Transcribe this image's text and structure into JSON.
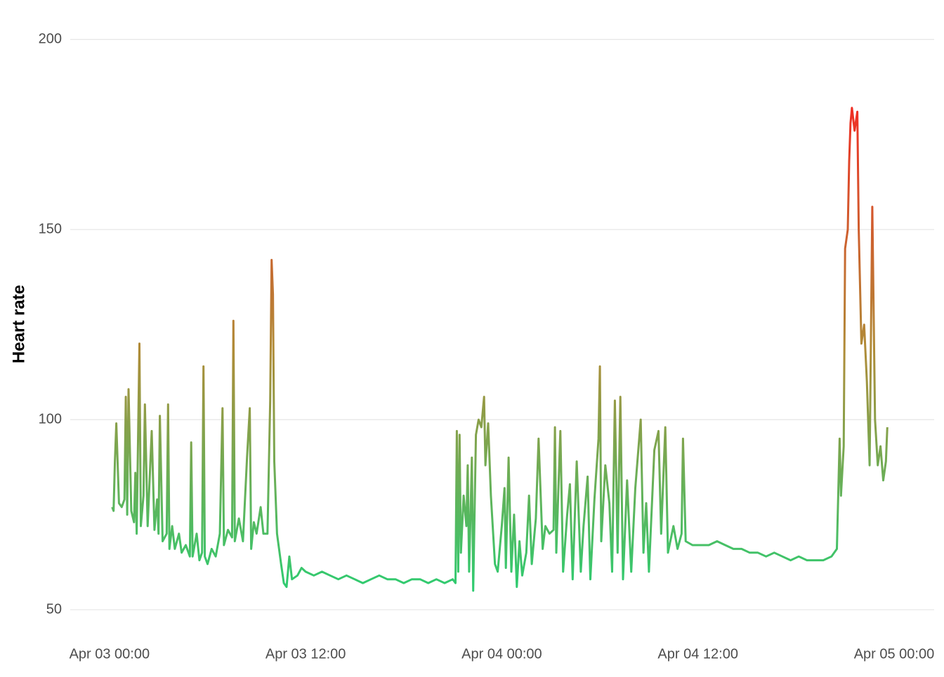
{
  "chart_data": {
    "type": "line",
    "y_label": "Heart rate",
    "x": [
      "Apr 03 00:10",
      "Apr 03 00:15",
      "Apr 03 00:20",
      "Apr 03 00:25",
      "Apr 03 00:35",
      "Apr 03 00:45",
      "Apr 03 00:55",
      "Apr 03 01:00",
      "Apr 03 01:05",
      "Apr 03 01:10",
      "Apr 03 01:20",
      "Apr 03 01:30",
      "Apr 03 01:35",
      "Apr 03 01:40",
      "Apr 03 01:50",
      "Apr 03 01:55",
      "Apr 03 02:05",
      "Apr 03 02:10",
      "Apr 03 02:20",
      "Apr 03 02:35",
      "Apr 03 02:45",
      "Apr 03 02:55",
      "Apr 03 03:00",
      "Apr 03 03:05",
      "Apr 03 03:15",
      "Apr 03 03:30",
      "Apr 03 03:35",
      "Apr 03 03:40",
      "Apr 03 03:50",
      "Apr 03 04:00",
      "Apr 03 04:15",
      "Apr 03 04:25",
      "Apr 03 04:40",
      "Apr 03 04:55",
      "Apr 03 05:00",
      "Apr 03 05:05",
      "Apr 03 05:20",
      "Apr 03 05:30",
      "Apr 03 05:40",
      "Apr 03 05:45",
      "Apr 03 05:50",
      "Apr 03 06:00",
      "Apr 03 06:15",
      "Apr 03 06:30",
      "Apr 03 06:45",
      "Apr 03 06:55",
      "Apr 03 07:00",
      "Apr 03 07:15",
      "Apr 03 07:30",
      "Apr 03 07:35",
      "Apr 03 07:40",
      "Apr 03 07:55",
      "Apr 03 08:10",
      "Apr 03 08:25",
      "Apr 03 08:35",
      "Apr 03 08:40",
      "Apr 03 08:50",
      "Apr 03 09:00",
      "Apr 03 09:15",
      "Apr 03 09:25",
      "Apr 03 09:40",
      "Apr 03 09:50",
      "Apr 03 09:55",
      "Apr 03 10:00",
      "Apr 03 10:05",
      "Apr 03 10:15",
      "Apr 03 10:30",
      "Apr 03 10:40",
      "Apr 03 10:50",
      "Apr 03 11:00",
      "Apr 03 11:10",
      "Apr 03 11:30",
      "Apr 03 11:45",
      "Apr 03 12:00",
      "Apr 03 12:30",
      "Apr 03 13:00",
      "Apr 03 13:30",
      "Apr 03 14:00",
      "Apr 03 14:30",
      "Apr 03 15:00",
      "Apr 03 15:30",
      "Apr 03 16:00",
      "Apr 03 16:30",
      "Apr 03 17:00",
      "Apr 03 17:30",
      "Apr 03 18:00",
      "Apr 03 18:30",
      "Apr 03 19:00",
      "Apr 03 19:30",
      "Apr 03 20:00",
      "Apr 03 20:30",
      "Apr 03 21:00",
      "Apr 03 21:10",
      "Apr 03 21:15",
      "Apr 03 21:20",
      "Apr 03 21:25",
      "Apr 03 21:30",
      "Apr 03 21:40",
      "Apr 03 21:50",
      "Apr 03 21:55",
      "Apr 03 22:00",
      "Apr 03 22:10",
      "Apr 03 22:15",
      "Apr 03 22:25",
      "Apr 03 22:35",
      "Apr 03 22:45",
      "Apr 03 22:55",
      "Apr 03 23:00",
      "Apr 03 23:10",
      "Apr 03 23:20",
      "Apr 03 23:35",
      "Apr 03 23:45",
      "Apr 04 00:00",
      "Apr 04 00:10",
      "Apr 04 00:15",
      "Apr 04 00:25",
      "Apr 04 00:35",
      "Apr 04 00:45",
      "Apr 04 00:55",
      "Apr 04 01:05",
      "Apr 04 01:15",
      "Apr 04 01:30",
      "Apr 04 01:40",
      "Apr 04 01:50",
      "Apr 04 02:05",
      "Apr 04 02:15",
      "Apr 04 02:30",
      "Apr 04 02:40",
      "Apr 04 02:55",
      "Apr 04 03:10",
      "Apr 04 03:15",
      "Apr 04 03:20",
      "Apr 04 03:35",
      "Apr 04 03:45",
      "Apr 04 04:00",
      "Apr 04 04:10",
      "Apr 04 04:20",
      "Apr 04 04:35",
      "Apr 04 04:50",
      "Apr 04 05:00",
      "Apr 04 05:15",
      "Apr 04 05:25",
      "Apr 04 05:40",
      "Apr 04 05:55",
      "Apr 04 06:00",
      "Apr 04 06:05",
      "Apr 04 06:20",
      "Apr 04 06:35",
      "Apr 04 06:45",
      "Apr 04 06:55",
      "Apr 04 07:05",
      "Apr 04 07:15",
      "Apr 04 07:25",
      "Apr 04 07:40",
      "Apr 04 07:55",
      "Apr 04 08:10",
      "Apr 04 08:30",
      "Apr 04 08:40",
      "Apr 04 08:50",
      "Apr 04 09:00",
      "Apr 04 09:20",
      "Apr 04 09:35",
      "Apr 04 09:45",
      "Apr 04 10:00",
      "Apr 04 10:10",
      "Apr 04 10:30",
      "Apr 04 10:45",
      "Apr 04 11:00",
      "Apr 04 11:05",
      "Apr 04 11:15",
      "Apr 04 11:40",
      "Apr 04 12:10",
      "Apr 04 12:40",
      "Apr 04 13:10",
      "Apr 04 13:40",
      "Apr 04 14:10",
      "Apr 04 14:40",
      "Apr 04 15:10",
      "Apr 04 15:40",
      "Apr 04 16:10",
      "Apr 04 16:40",
      "Apr 04 17:10",
      "Apr 04 17:40",
      "Apr 04 18:10",
      "Apr 04 18:40",
      "Apr 04 19:10",
      "Apr 04 19:40",
      "Apr 04 20:10",
      "Apr 04 20:30",
      "Apr 04 20:40",
      "Apr 04 20:45",
      "Apr 04 20:55",
      "Apr 04 21:00",
      "Apr 04 21:10",
      "Apr 04 21:15",
      "Apr 04 21:20",
      "Apr 04 21:25",
      "Apr 04 21:35",
      "Apr 04 21:45",
      "Apr 04 21:50",
      "Apr 04 22:00",
      "Apr 04 22:10",
      "Apr 04 22:20",
      "Apr 04 22:30",
      "Apr 04 22:40",
      "Apr 04 22:50",
      "Apr 04 23:00",
      "Apr 04 23:10",
      "Apr 04 23:20",
      "Apr 04 23:30",
      "Apr 04 23:35"
    ],
    "values": [
      77,
      76,
      89,
      99,
      78,
      77,
      79,
      106,
      75,
      108,
      76,
      73,
      86,
      70,
      120,
      72,
      80,
      104,
      72,
      97,
      71,
      79,
      70,
      101,
      68,
      70,
      104,
      66,
      72,
      66,
      70,
      65,
      67,
      64,
      94,
      64,
      70,
      63,
      65,
      114,
      64,
      62,
      66,
      64,
      70,
      103,
      67,
      71,
      69,
      126,
      68,
      74,
      68,
      90,
      103,
      66,
      73,
      70,
      77,
      70,
      70,
      105,
      142,
      133,
      89,
      70,
      62,
      57,
      56,
      64,
      58,
      59,
      61,
      60,
      59,
      60,
      59,
      58,
      59,
      58,
      57,
      58,
      59,
      58,
      58,
      57,
      58,
      58,
      57,
      58,
      57,
      58,
      57,
      97,
      60,
      96,
      65,
      80,
      72,
      88,
      60,
      90,
      55,
      96,
      100,
      98,
      106,
      88,
      99,
      80,
      62,
      60,
      72,
      82,
      61,
      90,
      60,
      75,
      56,
      68,
      59,
      65,
      80,
      62,
      74,
      95,
      66,
      72,
      70,
      71,
      98,
      65,
      97,
      60,
      75,
      83,
      58,
      89,
      60,
      72,
      85,
      58,
      79,
      95,
      114,
      68,
      88,
      78,
      60,
      105,
      65,
      106,
      58,
      84,
      60,
      82,
      100,
      65,
      78,
      60,
      92,
      97,
      70,
      98,
      65,
      72,
      66,
      70,
      95,
      68,
      67,
      67,
      67,
      68,
      67,
      66,
      66,
      65,
      65,
      64,
      65,
      64,
      63,
      64,
      63,
      63,
      63,
      64,
      66,
      95,
      80,
      93,
      145,
      150,
      168,
      178,
      182,
      176,
      181,
      150,
      120,
      125,
      110,
      88,
      156,
      100,
      88,
      93,
      84,
      89,
      98
    ],
    "colors": [
      "#2ecc71",
      "#b08c38",
      "#ef2f24"
    ],
    "xlim": [
      "Apr 02 21:36",
      "Apr 05 02:27"
    ],
    "xticks": [
      "Apr 03 00:00",
      "Apr 03 12:00",
      "Apr 04 00:00",
      "Apr 04 12:00",
      "Apr 05 00:00"
    ],
    "ylim": [
      43,
      203
    ],
    "yticks": [
      50,
      100,
      150,
      200
    ],
    "grid": true
  }
}
